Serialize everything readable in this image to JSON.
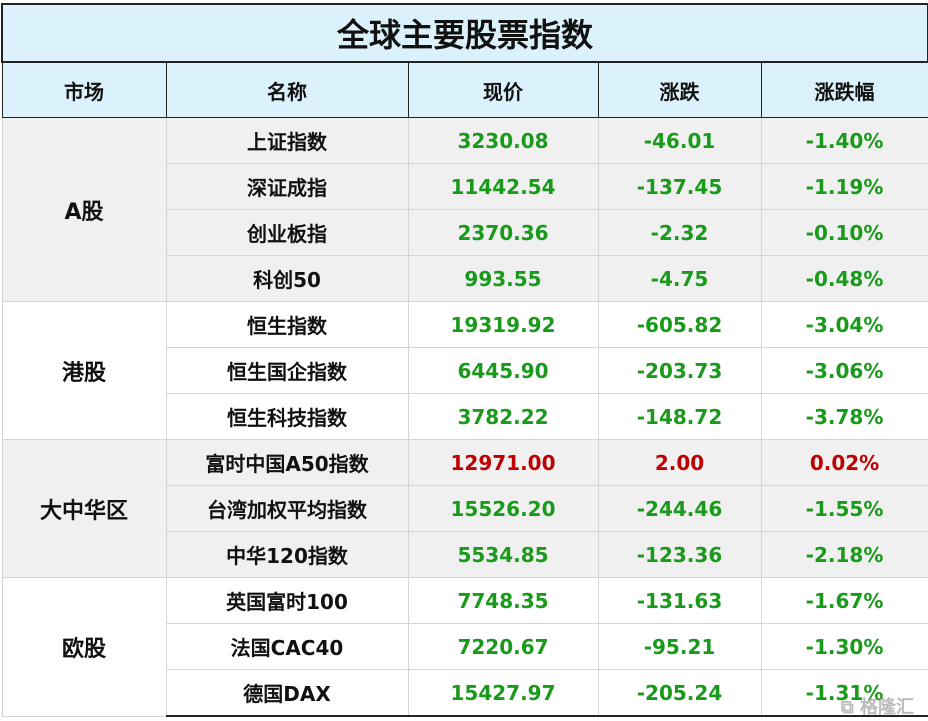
{
  "title": "全球主要股票指数",
  "headers": [
    "市场",
    "名称",
    "现价",
    "涨跌",
    "涨跌幅"
  ],
  "colors": {
    "down": "#1a9a1a",
    "up": "#c00000",
    "header_bg": "#dbf2fc"
  },
  "groups": [
    {
      "market": "A股",
      "rows": [
        {
          "name": "上证指数",
          "price": "3230.08",
          "change": "-46.01",
          "pct": "-1.40%",
          "dir": "down"
        },
        {
          "name": "深证成指",
          "price": "11442.54",
          "change": "-137.45",
          "pct": "-1.19%",
          "dir": "down"
        },
        {
          "name": "创业板指",
          "price": "2370.36",
          "change": "-2.32",
          "pct": "-0.10%",
          "dir": "down"
        },
        {
          "name": "科创50",
          "price": "993.55",
          "change": "-4.75",
          "pct": "-0.48%",
          "dir": "down"
        }
      ]
    },
    {
      "market": "港股",
      "rows": [
        {
          "name": "恒生指数",
          "price": "19319.92",
          "change": "-605.82",
          "pct": "-3.04%",
          "dir": "down"
        },
        {
          "name": "恒生国企指数",
          "price": "6445.90",
          "change": "-203.73",
          "pct": "-3.06%",
          "dir": "down"
        },
        {
          "name": "恒生科技指数",
          "price": "3782.22",
          "change": "-148.72",
          "pct": "-3.78%",
          "dir": "down"
        }
      ]
    },
    {
      "market": "大中华区",
      "rows": [
        {
          "name": "富时中国A50指数",
          "price": "12971.00",
          "change": "2.00",
          "pct": "0.02%",
          "dir": "up"
        },
        {
          "name": "台湾加权平均指数",
          "price": "15526.20",
          "change": "-244.46",
          "pct": "-1.55%",
          "dir": "down"
        },
        {
          "name": "中华120指数",
          "price": "5534.85",
          "change": "-123.36",
          "pct": "-2.18%",
          "dir": "down"
        }
      ]
    },
    {
      "market": "欧股",
      "rows": [
        {
          "name": "英国富时100",
          "price": "7748.35",
          "change": "-131.63",
          "pct": "-1.67%",
          "dir": "down"
        },
        {
          "name": "法国CAC40",
          "price": "7220.67",
          "change": "-95.21",
          "pct": "-1.30%",
          "dir": "down"
        },
        {
          "name": "德国DAX",
          "price": "15427.97",
          "change": "-205.24",
          "pct": "-1.31%",
          "dir": "down"
        }
      ]
    }
  ],
  "watermark": "格隆汇"
}
